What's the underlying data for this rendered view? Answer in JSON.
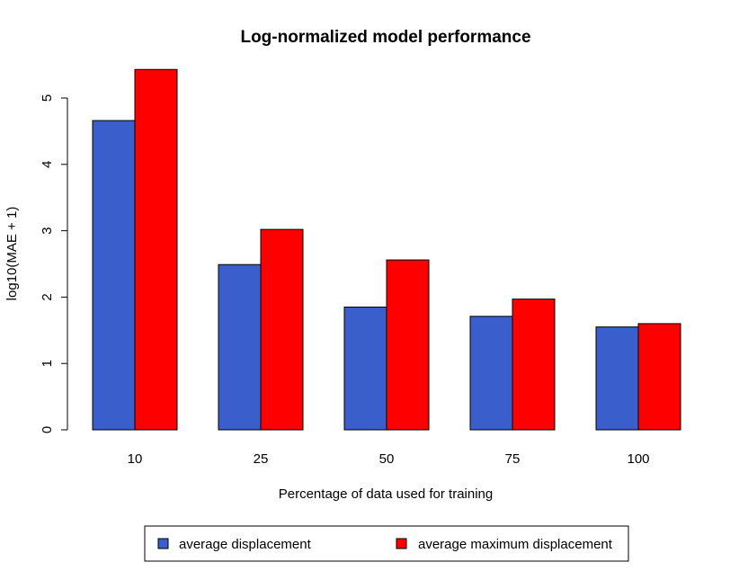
{
  "chart_data": {
    "type": "bar",
    "title": "Log-normalized model performance",
    "xlabel": "Percentage of data used for training",
    "ylabel": "log10(MAE + 1)",
    "categories": [
      "10",
      "25",
      "50",
      "75",
      "100"
    ],
    "y_ticks": [
      "0",
      "1",
      "2",
      "3",
      "4",
      "5"
    ],
    "ylim": [
      0,
      5.5
    ],
    "grid": false,
    "legend_position": "bottom",
    "series": [
      {
        "name": "average displacement",
        "color": "#3a5fcd",
        "values": [
          4.66,
          2.49,
          1.85,
          1.71,
          1.55
        ]
      },
      {
        "name": "average maximum displacement",
        "color": "#ff0000",
        "values": [
          5.43,
          3.02,
          2.56,
          1.97,
          1.6
        ]
      }
    ]
  }
}
